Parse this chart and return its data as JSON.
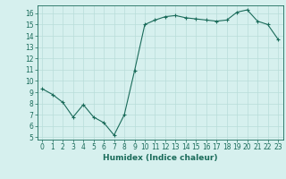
{
  "x": [
    0,
    1,
    2,
    3,
    4,
    5,
    6,
    7,
    8,
    9,
    10,
    11,
    12,
    13,
    14,
    15,
    16,
    17,
    18,
    19,
    20,
    21,
    22,
    23
  ],
  "y": [
    9.3,
    8.8,
    8.1,
    6.8,
    7.9,
    6.8,
    6.3,
    5.2,
    7.0,
    10.9,
    15.0,
    15.4,
    15.7,
    15.8,
    15.6,
    15.5,
    15.4,
    15.3,
    15.4,
    16.1,
    16.3,
    15.3,
    15.0,
    13.7
  ],
  "xlim": [
    -0.5,
    23.5
  ],
  "ylim": [
    4.8,
    16.7
  ],
  "yticks": [
    5,
    6,
    7,
    8,
    9,
    10,
    11,
    12,
    13,
    14,
    15,
    16
  ],
  "xticks": [
    0,
    1,
    2,
    3,
    4,
    5,
    6,
    7,
    8,
    9,
    10,
    11,
    12,
    13,
    14,
    15,
    16,
    17,
    18,
    19,
    20,
    21,
    22,
    23
  ],
  "xlabel": "Humidex (Indice chaleur)",
  "line_color": "#1a6b5a",
  "marker": "+",
  "background_color": "#d6f0ee",
  "grid_color": "#b8ddd9",
  "axis_color": "#1a6b5a",
  "label_color": "#1a6b5a",
  "xlabel_fontsize": 6.5,
  "tick_fontsize": 5.5
}
